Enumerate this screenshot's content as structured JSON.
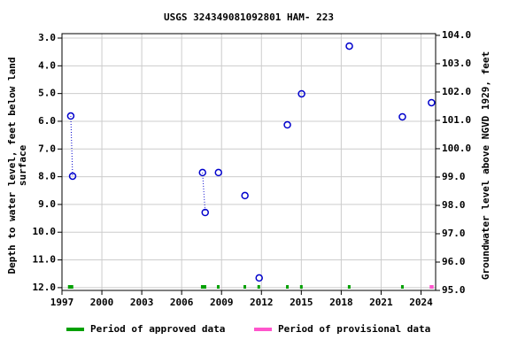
{
  "chart_data": {
    "type": "scatter",
    "title": "USGS 324349081092801 HAM- 223",
    "y_label": [
      "Depth to water level, feet below land",
      "surface"
    ],
    "y2_label": "Groundwater level above NGVD 1929, feet",
    "xlim": [
      1997,
      2025.1
    ],
    "xticks": [
      1997,
      2000,
      2003,
      2006,
      2009,
      2012,
      2015,
      2018,
      2021,
      2024
    ],
    "ylim": [
      2.84,
      12.1
    ],
    "y_inverted": true,
    "yticks": [
      {
        "value": 3,
        "label": "3.0"
      },
      {
        "value": 4,
        "label": "4.0"
      },
      {
        "value": 5,
        "label": "5.0"
      },
      {
        "value": 6,
        "label": "6.0"
      },
      {
        "value": 7,
        "label": "7.0"
      },
      {
        "value": 8,
        "label": "8.0"
      },
      {
        "value": 9,
        "label": "9.0"
      },
      {
        "value": 10,
        "label": "10.0"
      },
      {
        "value": 11,
        "label": "11.0"
      },
      {
        "value": 12,
        "label": "12.0"
      }
    ],
    "y2lim": [
      95,
      104.06
    ],
    "y2ticks": [
      {
        "value": 95,
        "label": "95.0"
      },
      {
        "value": 96,
        "label": "96.0"
      },
      {
        "value": 97,
        "label": "97.0"
      },
      {
        "value": 98,
        "label": "98.0"
      },
      {
        "value": 99,
        "label": "99.0"
      },
      {
        "value": 100,
        "label": "100.0"
      },
      {
        "value": 101,
        "label": "101.0"
      },
      {
        "value": 102,
        "label": "102.0"
      },
      {
        "value": 103,
        "label": "103.0"
      },
      {
        "value": 104,
        "label": "104.0"
      }
    ],
    "grid": true,
    "series": [
      {
        "color": "#0000cc",
        "x": [
          1997.66,
          1997.8,
          2007.57,
          2007.77,
          2008.77,
          2010.76,
          2011.83,
          2013.95,
          2015.02,
          2018.61,
          2022.6,
          2024.79
        ],
        "values": [
          5.81,
          7.98,
          7.85,
          9.29,
          7.85,
          8.68,
          11.65,
          6.13,
          5.01,
          3.29,
          5.84,
          5.33
        ]
      }
    ],
    "periods": [
      {
        "name": "Period of approved data",
        "color": "#00a000",
        "ranges": [
          [
            1997.45,
            1997.85
          ],
          [
            2007.45,
            2007.85
          ],
          [
            2008.65,
            2008.85
          ],
          [
            2010.65,
            2010.85
          ],
          [
            2011.7,
            2011.9
          ],
          [
            2013.85,
            2014.05
          ],
          [
            2014.9,
            2015.1
          ],
          [
            2018.5,
            2018.7
          ],
          [
            2022.5,
            2022.7
          ]
        ]
      },
      {
        "name": "Period of provisional data",
        "color": "#ff55cc",
        "ranges": [
          [
            2024.65,
            2024.95
          ]
        ]
      }
    ]
  }
}
